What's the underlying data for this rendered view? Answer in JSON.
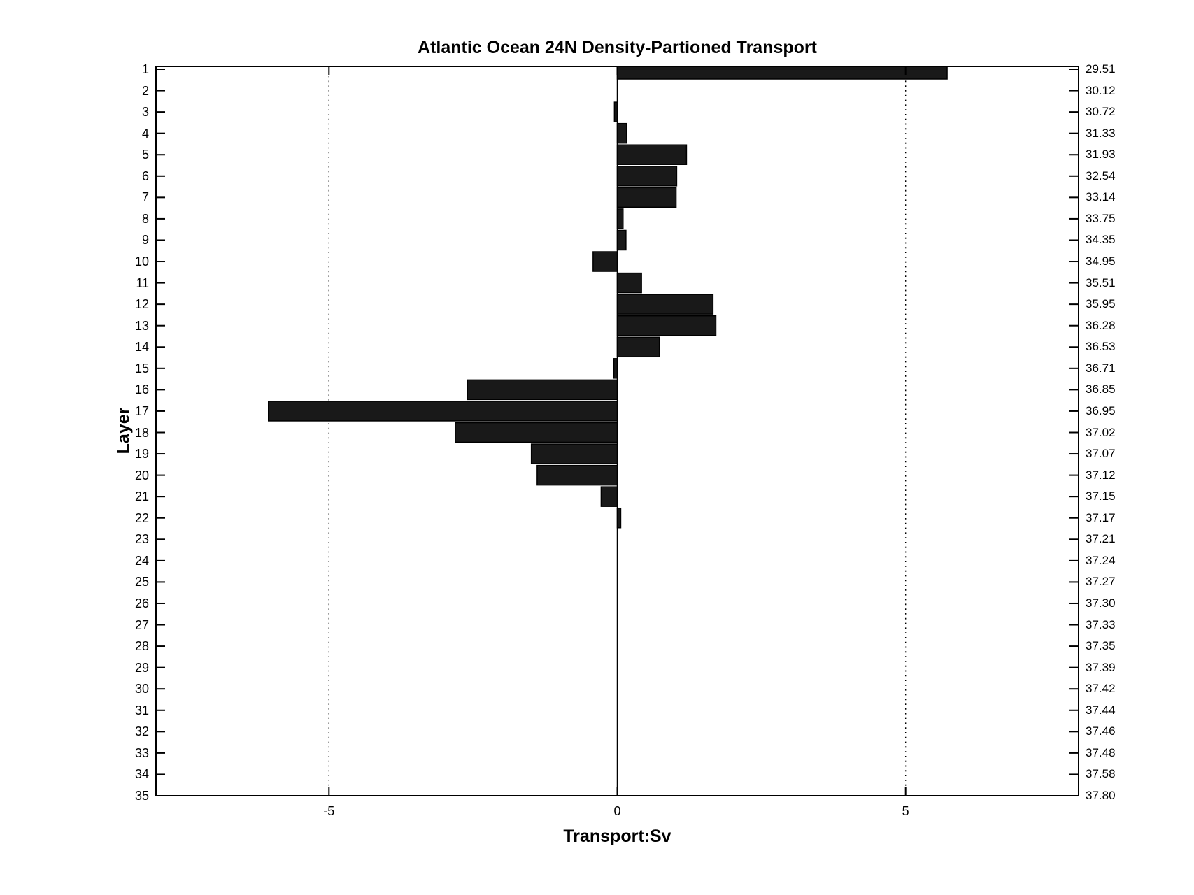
{
  "chart_data": {
    "type": "bar",
    "orientation": "horizontal",
    "title": "Atlantic Ocean 24N Density-Partioned Transport",
    "xlabel": "Transport:Sv",
    "ylabel": "Layer",
    "xlim": [
      -8,
      8
    ],
    "x_ticks": [
      -5,
      0,
      5
    ],
    "y_categories": [
      1,
      2,
      3,
      4,
      5,
      6,
      7,
      8,
      9,
      10,
      11,
      12,
      13,
      14,
      15,
      16,
      17,
      18,
      19,
      20,
      21,
      22,
      23,
      24,
      25,
      26,
      27,
      28,
      29,
      30,
      31,
      32,
      33,
      34,
      35
    ],
    "values": [
      5.72,
      0.0,
      -0.05,
      0.16,
      1.2,
      1.03,
      1.02,
      0.1,
      0.15,
      -0.42,
      0.42,
      1.66,
      1.71,
      0.73,
      -0.06,
      -2.6,
      -6.05,
      -2.81,
      -1.49,
      -1.39,
      -0.28,
      0.06,
      0.0,
      0.0,
      0.0,
      0.0,
      0.0,
      0.0,
      0.0,
      0.0,
      0.0,
      0.0,
      0.0,
      0.0,
      0.0
    ],
    "right_axis_labels": [
      "29.51",
      "30.12",
      "30.72",
      "31.33",
      "31.93",
      "32.54",
      "33.14",
      "33.75",
      "34.35",
      "34.95",
      "35.51",
      "35.95",
      "36.28",
      "36.53",
      "36.71",
      "36.85",
      "36.95",
      "37.02",
      "37.07",
      "37.12",
      "37.15",
      "37.17",
      "37.21",
      "37.24",
      "37.27",
      "37.30",
      "37.33",
      "37.35",
      "37.39",
      "37.42",
      "37.44",
      "37.46",
      "37.48",
      "37.58",
      "37.80"
    ],
    "grid": {
      "vertical_dotted_at": [
        -5,
        5
      ],
      "zero_line": true
    },
    "legend_position": "none",
    "bar_color": "#191919",
    "axis_color": "#000000",
    "background_color": "#ffffff"
  }
}
